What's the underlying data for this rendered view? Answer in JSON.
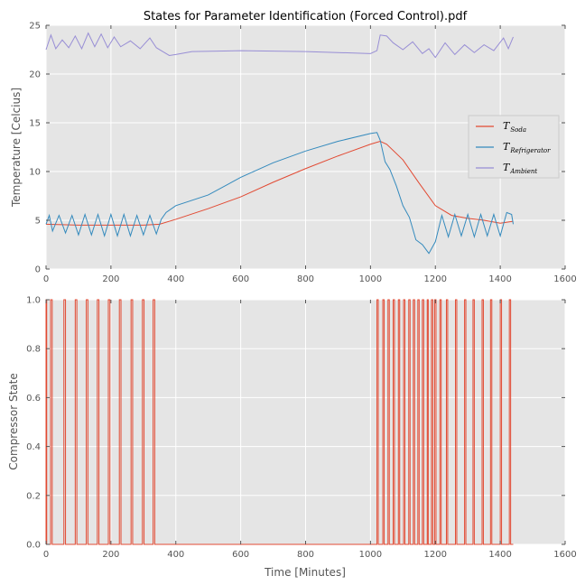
{
  "title": "States for Parameter Identification (Forced Control).pdf",
  "colors": {
    "soda": "#E24A33",
    "refrigerator": "#348ABD",
    "ambient": "#988ED5",
    "panel": "#E5E5E5",
    "grid": "#FFFFFF"
  },
  "chart_data": [
    {
      "type": "line",
      "ylabel": "Temperature [Celcius]",
      "xlabel": "",
      "xlim": [
        0,
        1600
      ],
      "ylim": [
        0,
        25
      ],
      "xticks": [
        "0",
        "200",
        "400",
        "600",
        "800",
        "1000",
        "1200",
        "1400",
        "1600"
      ],
      "yticks": [
        "0",
        "5",
        "10",
        "15",
        "20",
        "25"
      ],
      "grid": true,
      "legend_position": "right",
      "series": [
        {
          "name": "T_Soda",
          "label_main": "T",
          "label_sub": "Soda",
          "color": "#E24A33",
          "points": [
            [
              0,
              4.6
            ],
            [
              100,
              4.5
            ],
            [
              200,
              4.5
            ],
            [
              300,
              4.5
            ],
            [
              350,
              4.6
            ],
            [
              400,
              5.1
            ],
            [
              500,
              6.2
            ],
            [
              600,
              7.4
            ],
            [
              700,
              8.9
            ],
            [
              800,
              10.3
            ],
            [
              900,
              11.6
            ],
            [
              1000,
              12.8
            ],
            [
              1030,
              13.1
            ],
            [
              1050,
              12.8
            ],
            [
              1100,
              11.2
            ],
            [
              1150,
              8.8
            ],
            [
              1200,
              6.5
            ],
            [
              1250,
              5.5
            ],
            [
              1300,
              5.2
            ],
            [
              1350,
              5.0
            ],
            [
              1400,
              4.7
            ],
            [
              1440,
              4.9
            ]
          ]
        },
        {
          "name": "T_Refrigerator",
          "label_main": "T",
          "label_sub": "Refrigerator",
          "color": "#348ABD",
          "points": [
            [
              0,
              4.6
            ],
            [
              10,
              5.5
            ],
            [
              20,
              3.9
            ],
            [
              40,
              5.5
            ],
            [
              60,
              3.7
            ],
            [
              80,
              5.5
            ],
            [
              100,
              3.5
            ],
            [
              120,
              5.6
            ],
            [
              140,
              3.5
            ],
            [
              160,
              5.6
            ],
            [
              180,
              3.4
            ],
            [
              200,
              5.6
            ],
            [
              220,
              3.4
            ],
            [
              240,
              5.6
            ],
            [
              260,
              3.4
            ],
            [
              280,
              5.5
            ],
            [
              300,
              3.5
            ],
            [
              320,
              5.5
            ],
            [
              340,
              3.6
            ],
            [
              355,
              5.1
            ],
            [
              370,
              5.8
            ],
            [
              400,
              6.5
            ],
            [
              500,
              7.6
            ],
            [
              600,
              9.4
            ],
            [
              700,
              10.9
            ],
            [
              800,
              12.1
            ],
            [
              900,
              13.1
            ],
            [
              1000,
              13.9
            ],
            [
              1020,
              14.0
            ],
            [
              1030,
              13.2
            ],
            [
              1045,
              11.0
            ],
            [
              1060,
              10.2
            ],
            [
              1080,
              8.5
            ],
            [
              1100,
              6.5
            ],
            [
              1120,
              5.3
            ],
            [
              1140,
              3.0
            ],
            [
              1160,
              2.5
            ],
            [
              1180,
              1.6
            ],
            [
              1200,
              2.8
            ],
            [
              1220,
              5.5
            ],
            [
              1240,
              3.3
            ],
            [
              1260,
              5.6
            ],
            [
              1280,
              3.4
            ],
            [
              1300,
              5.6
            ],
            [
              1320,
              3.3
            ],
            [
              1340,
              5.6
            ],
            [
              1360,
              3.4
            ],
            [
              1380,
              5.6
            ],
            [
              1400,
              3.4
            ],
            [
              1420,
              5.8
            ],
            [
              1435,
              5.6
            ],
            [
              1440,
              4.6
            ]
          ]
        },
        {
          "name": "T_Ambient",
          "label_main": "T",
          "label_sub": "Ambient",
          "color": "#988ED5",
          "points": [
            [
              0,
              22.5
            ],
            [
              15,
              24.0
            ],
            [
              30,
              22.6
            ],
            [
              50,
              23.5
            ],
            [
              70,
              22.7
            ],
            [
              90,
              23.9
            ],
            [
              110,
              22.6
            ],
            [
              130,
              24.2
            ],
            [
              150,
              22.8
            ],
            [
              170,
              24.1
            ],
            [
              190,
              22.7
            ],
            [
              210,
              23.8
            ],
            [
              230,
              22.8
            ],
            [
              260,
              23.4
            ],
            [
              290,
              22.6
            ],
            [
              320,
              23.7
            ],
            [
              340,
              22.7
            ],
            [
              360,
              22.3
            ],
            [
              380,
              21.9
            ],
            [
              400,
              22.0
            ],
            [
              450,
              22.3
            ],
            [
              600,
              22.4
            ],
            [
              800,
              22.3
            ],
            [
              1000,
              22.1
            ],
            [
              1020,
              22.4
            ],
            [
              1030,
              24.0
            ],
            [
              1050,
              23.9
            ],
            [
              1070,
              23.2
            ],
            [
              1100,
              22.5
            ],
            [
              1130,
              23.3
            ],
            [
              1160,
              22.1
            ],
            [
              1180,
              22.6
            ],
            [
              1200,
              21.7
            ],
            [
              1230,
              23.2
            ],
            [
              1260,
              22.0
            ],
            [
              1290,
              23.0
            ],
            [
              1320,
              22.2
            ],
            [
              1350,
              23.0
            ],
            [
              1380,
              22.4
            ],
            [
              1410,
              23.7
            ],
            [
              1425,
              22.6
            ],
            [
              1440,
              23.8
            ]
          ]
        }
      ]
    },
    {
      "type": "line",
      "ylabel": "Compressor State",
      "xlabel": "Time [Minutes]",
      "xlim": [
        0,
        1600
      ],
      "ylim": [
        0,
        1
      ],
      "xticks": [
        "0",
        "200",
        "400",
        "600",
        "800",
        "1000",
        "1200",
        "1400",
        "1600"
      ],
      "yticks": [
        "0.0",
        "0.2",
        "0.4",
        "0.6",
        "0.8",
        "1.0"
      ],
      "grid": true,
      "series": [
        {
          "name": "Compressor State",
          "color": "#E24A33",
          "step": true,
          "on_intervals": [
            [
              0,
              2
            ],
            [
              14,
              19
            ],
            [
              55,
              60
            ],
            [
              90,
              95
            ],
            [
              124,
              129
            ],
            [
              158,
              163
            ],
            [
              192,
              197
            ],
            [
              226,
              231
            ],
            [
              262,
              267
            ],
            [
              297,
              302
            ],
            [
              330,
              335
            ],
            [
              1020,
              1024
            ],
            [
              1038,
              1042
            ],
            [
              1054,
              1058
            ],
            [
              1070,
              1074
            ],
            [
              1086,
              1090
            ],
            [
              1102,
              1106
            ],
            [
              1118,
              1122
            ],
            [
              1132,
              1136
            ],
            [
              1146,
              1150
            ],
            [
              1160,
              1164
            ],
            [
              1175,
              1178
            ],
            [
              1188,
              1192
            ],
            [
              1198,
              1202
            ],
            [
              1214,
              1218
            ],
            [
              1234,
              1238
            ],
            [
              1262,
              1266
            ],
            [
              1290,
              1294
            ],
            [
              1316,
              1320
            ],
            [
              1344,
              1348
            ],
            [
              1370,
              1374
            ],
            [
              1400,
              1404
            ],
            [
              1428,
              1432
            ]
          ]
        }
      ]
    }
  ]
}
